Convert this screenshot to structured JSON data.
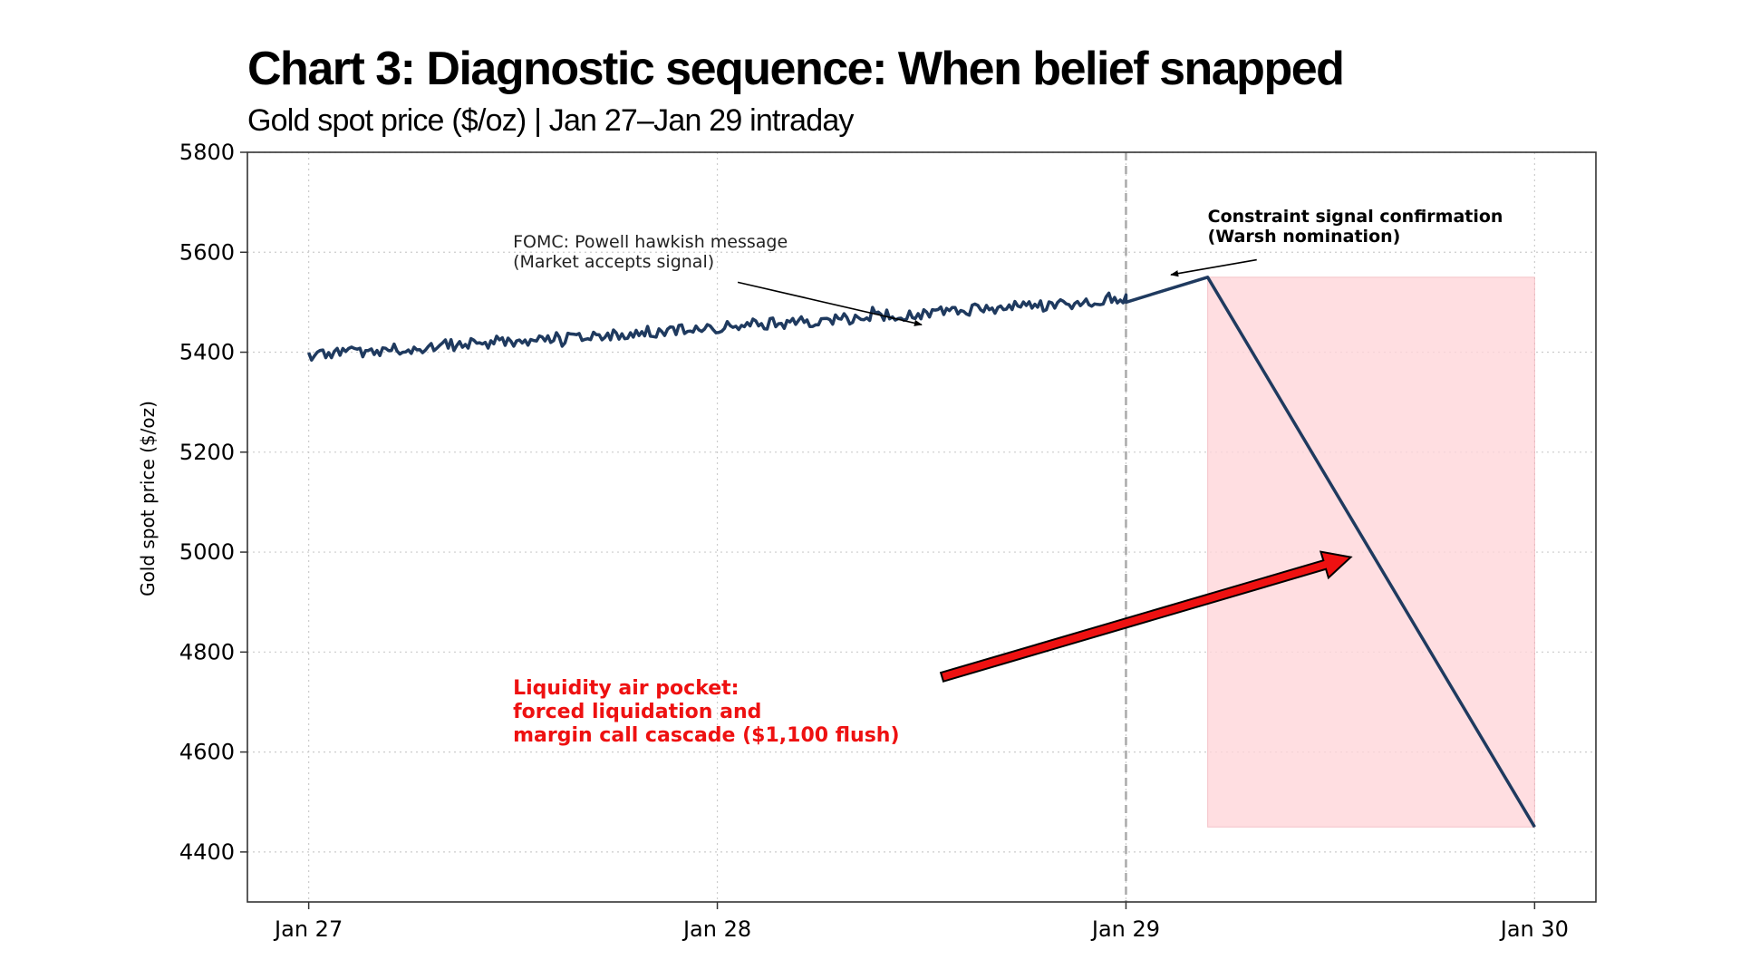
{
  "title": "Chart 3: Diagnostic sequence: When belief snapped",
  "subtitle": "Gold spot price ($/oz) | Jan 27–Jan 29 intraday",
  "colors": {
    "line": "#1f3a5f",
    "highlight": "#ffd6da",
    "arrow_fill": "#ee1111",
    "liquidity_text": "#ee1111",
    "vline": "#aaaaaa"
  },
  "chart_data": {
    "type": "line",
    "title": "Chart 3: Diagnostic sequence: When belief snapped",
    "subtitle": "Gold spot price ($/oz) | Jan 27–Jan 29 intraday",
    "xlabel": "",
    "ylabel": "Gold spot price ($/oz)",
    "x_unit": "days since Jan 27",
    "xlim": [
      -0.15,
      3.15
    ],
    "ylim": [
      4300,
      5800
    ],
    "x_ticks": [
      0,
      1,
      2,
      3
    ],
    "x_tick_labels": [
      "Jan 27",
      "Jan 28",
      "Jan 29",
      "Jan 30"
    ],
    "y_ticks": [
      4400,
      4600,
      4800,
      5000,
      5200,
      5400,
      5600,
      5800
    ],
    "grid": true,
    "series": [
      {
        "name": "Gold spot price",
        "intraday": {
          "start": 0,
          "end": 2,
          "points": 288,
          "y_start": 5395,
          "y_end": 5505,
          "noise_amplitude": 13
        },
        "segments": [
          {
            "x": 2.0,
            "y": 5500
          },
          {
            "x": 2.2,
            "y": 5550
          },
          {
            "x": 3.0,
            "y": 4450
          }
        ]
      }
    ],
    "vline": {
      "x": 2.0,
      "style": "dashed"
    },
    "shaded_region": {
      "x0": 2.2,
      "x1": 3.0,
      "y0": 4450,
      "y1": 5550
    },
    "annotations": [
      {
        "id": "fomc",
        "lines": [
          "FOMC: Powell hawkish message",
          "(Market accepts signal)"
        ],
        "text_x": 0.5,
        "text_y": 5610,
        "arrow_from": [
          1.05,
          5540
        ],
        "arrow_to": [
          1.5,
          5455
        ]
      },
      {
        "id": "constraint",
        "lines": [
          "Constraint signal confirmation",
          "(Warsh nomination)"
        ],
        "text_x": 2.2,
        "text_y": 5660,
        "arrow_from": [
          2.32,
          5585
        ],
        "arrow_to": [
          2.11,
          5555
        ]
      },
      {
        "id": "liquidity",
        "lines": [
          "Liquidity air pocket:",
          "forced liquidation and",
          "margin call cascade ($1,100 flush)"
        ],
        "text_x": 0.5,
        "text_y": 4715,
        "arrow_from": [
          1.55,
          4750
        ],
        "arrow_to": [
          2.55,
          4990
        ]
      }
    ]
  }
}
